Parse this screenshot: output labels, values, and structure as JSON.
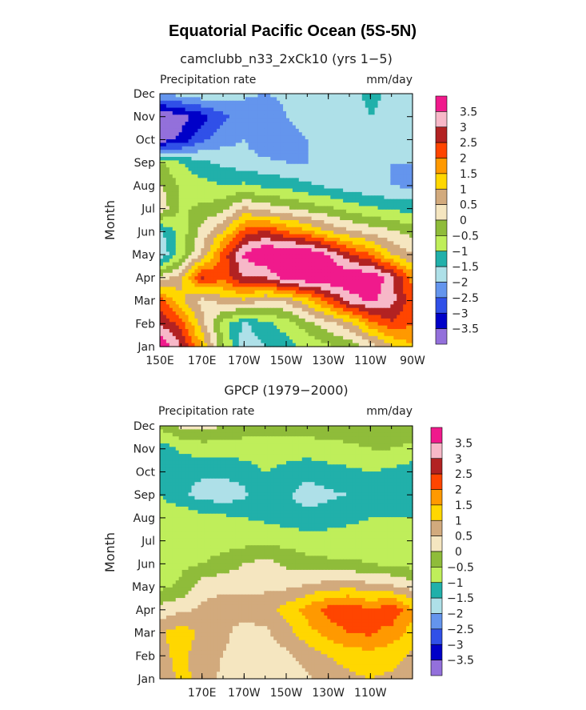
{
  "title": "Equatorial Pacific Ocean (5S-5N)",
  "colors": {
    "levels": [
      "3.5",
      "3",
      "2.5",
      "2",
      "1.5",
      "1",
      "0.5",
      "0",
      "−0.5",
      "−1",
      "−1.5",
      "−2",
      "−2.5",
      "−3",
      "−3.5"
    ],
    "palette": [
      "#f01a8c",
      "#f7b8c8",
      "#b22222",
      "#ff4500",
      "#ff9900",
      "#ffd700",
      "#d2aa7d",
      "#f5e6c0",
      "#8fbc3a",
      "#bfee5a",
      "#21b0aa",
      "#aee0e8",
      "#6495ed",
      "#3050e8",
      "#0000c8",
      "#9370db"
    ]
  },
  "chart_data": [
    {
      "type": "heatmap",
      "title": "camclubb_n33_2xCk10 (yrs 1−5)",
      "left_label": "Precipitation rate",
      "right_label": "mm/day",
      "ylabel": "Month",
      "xlabel": "",
      "y_ticks": [
        "Jan",
        "Feb",
        "Mar",
        "Apr",
        "May",
        "Jun",
        "Jul",
        "Aug",
        "Sep",
        "Oct",
        "Nov",
        "Dec"
      ],
      "x_ticks": [
        "150E",
        "170E",
        "170W",
        "150W",
        "130W",
        "110W",
        "90W"
      ],
      "x_range_lon": [
        150,
        270
      ],
      "colorbar": {
        "levels": [
          "3.5",
          "3",
          "2.5",
          "2",
          "1.5",
          "1",
          "0.5",
          "0",
          "−0.5",
          "−1",
          "−1.5",
          "−2",
          "−2.5",
          "−3",
          "−3.5"
        ]
      },
      "lon": [
        150,
        160,
        170,
        180,
        190,
        200,
        210,
        220,
        230,
        240,
        250,
        260,
        270
      ],
      "months": [
        "Jan",
        "Feb",
        "Mar",
        "Apr",
        "May",
        "Jun",
        "Jul",
        "Aug",
        "Sep",
        "Oct",
        "Nov",
        "Dec"
      ],
      "values": [
        [
          4,
          3,
          1.5,
          -0.5,
          -1.8,
          -1.5,
          -1.2,
          -0.9,
          -0.6,
          -0.3,
          0.2,
          0.9,
          1.5
        ],
        [
          3,
          2.3,
          0.7,
          -0.7,
          -1.6,
          -1.1,
          -0.8,
          -0.2,
          0.3,
          0.8,
          1.8,
          2.4,
          2.0
        ],
        [
          2.2,
          1.1,
          0.3,
          0.7,
          0.9,
          0.4,
          0.6,
          1.3,
          2.2,
          3.2,
          3.6,
          3.2,
          2.2
        ],
        [
          0.2,
          0.8,
          2.6,
          2.2,
          3.0,
          3.0,
          3.8,
          4.0,
          4.1,
          4.0,
          4.0,
          3.2,
          1.8
        ],
        [
          -2,
          -0.7,
          0.6,
          2.2,
          3.6,
          4.1,
          4.2,
          4.2,
          3.5,
          2.6,
          2.0,
          1.0,
          0.5
        ],
        [
          -1.6,
          -0.8,
          0.2,
          1.0,
          2.2,
          2.6,
          2.0,
          1.6,
          1.0,
          0.6,
          0.3,
          0.1,
          -0.2
        ],
        [
          0.4,
          -0.6,
          -0.4,
          -0.2,
          0.6,
          0.3,
          0.1,
          -0.2,
          -0.4,
          -0.7,
          -0.9,
          -1.1,
          -1.2
        ],
        [
          0.1,
          -0.6,
          -0.8,
          -1.0,
          -0.9,
          -1.1,
          -1.2,
          -1.4,
          -1.6,
          -1.8,
          -1.9,
          -2.0,
          -2.1
        ],
        [
          -0.4,
          -1.0,
          -1.4,
          -1.6,
          -1.8,
          -1.9,
          -2.0,
          -2.0,
          -2.0,
          -2.0,
          -2.0,
          -2.0,
          -2.0
        ],
        [
          -3.8,
          -3.4,
          -2.6,
          -2.2,
          -2.0,
          -2.4,
          -2.2,
          -2.0,
          -2.0,
          -2.0,
          -2.0,
          -2.0,
          -2.0
        ],
        [
          -4,
          -3.7,
          -3.2,
          -2.6,
          -2.3,
          -2.4,
          -2.0,
          -1.8,
          -1.6,
          -1.7,
          -1.5,
          -1.6,
          -1.8
        ],
        [
          -2,
          -1.8,
          -1.6,
          -1.8,
          -1.9,
          -2.0,
          -1.9,
          -1.8,
          -1.7,
          -1.6,
          -1.4,
          -1.6,
          -1.8
        ]
      ]
    },
    {
      "type": "heatmap",
      "title": "GPCP (1979−2000)",
      "left_label": "Precipitation rate",
      "right_label": "mm/day",
      "ylabel": "Month",
      "xlabel": "",
      "y_ticks": [
        "Jan",
        "Feb",
        "Mar",
        "Apr",
        "May",
        "Jun",
        "Jul",
        "Aug",
        "Sep",
        "Oct",
        "Nov",
        "Dec"
      ],
      "x_ticks": [
        "170E",
        "170W",
        "150W",
        "130W",
        "110W"
      ],
      "x_range_lon": [
        150,
        270
      ],
      "colorbar": {
        "levels": [
          "3.5",
          "3",
          "2.5",
          "2",
          "1.5",
          "1",
          "0.5",
          "0",
          "−0.5",
          "−1",
          "−1.5",
          "−2",
          "−2.5",
          "−3",
          "−3.5"
        ]
      },
      "lon": [
        150,
        160,
        170,
        180,
        190,
        200,
        210,
        220,
        230,
        240,
        250,
        260,
        270
      ],
      "months": [
        "Jan",
        "Feb",
        "Mar",
        "Apr",
        "May",
        "Jun",
        "Jul",
        "Aug",
        "Sep",
        "Oct",
        "Nov",
        "Dec"
      ],
      "values": [
        [
          0.5,
          1.2,
          0.8,
          0.4,
          0.2,
          0.1,
          0.2,
          0.4,
          0.7,
          0.9,
          1.0,
          0.9,
          0.7
        ],
        [
          0.8,
          1.2,
          0.6,
          0.5,
          0.3,
          0.2,
          0.4,
          0.7,
          1.0,
          1.2,
          1.3,
          1.2,
          0.9
        ],
        [
          0.9,
          1.3,
          0.9,
          0.6,
          0.3,
          0.4,
          0.8,
          1.3,
          1.7,
          2.0,
          2.1,
          1.8,
          1.3
        ],
        [
          0.2,
          0.4,
          0.6,
          0.7,
          0.7,
          0.8,
          1.2,
          1.7,
          2.2,
          2.4,
          2.0,
          2.4,
          1.6
        ],
        [
          -0.6,
          -0.4,
          0.3,
          0.4,
          0.4,
          0.4,
          0.4,
          0.6,
          0.8,
          0.9,
          0.7,
          0.6,
          0.3
        ],
        [
          -0.8,
          -0.6,
          -0.5,
          -0.3,
          0.0,
          0.2,
          -0.1,
          -0.3,
          -0.4,
          -0.4,
          -0.5,
          -0.6,
          -0.7
        ],
        [
          -0.8,
          -0.9,
          -0.8,
          -0.7,
          -0.7,
          -0.6,
          -0.7,
          -0.8,
          -0.8,
          -0.8,
          -0.8,
          -0.9,
          -0.9
        ],
        [
          -0.7,
          -0.6,
          -0.8,
          -0.9,
          -1.0,
          -1.1,
          -1.2,
          -1.3,
          -1.2,
          -1.1,
          -1.0,
          -1.0,
          -1.0
        ],
        [
          -1.0,
          -1.4,
          -1.7,
          -1.8,
          -1.6,
          -1.1,
          -1.4,
          -1.8,
          -1.6,
          -1.5,
          -1.3,
          -1.2,
          -1.4
        ],
        [
          -1.1,
          -1.3,
          -1.4,
          -1.4,
          -1.3,
          -1.0,
          -1.2,
          -1.3,
          -1.2,
          -1.1,
          -1.0,
          -1.1,
          -1.3
        ],
        [
          -1.3,
          -0.9,
          -0.8,
          -0.8,
          -0.7,
          -0.6,
          -0.7,
          -0.8,
          -0.7,
          -0.6,
          -0.5,
          -0.5,
          -0.6
        ],
        [
          -0.4,
          0.1,
          0.2,
          0.0,
          -0.3,
          -0.4,
          -0.3,
          -0.2,
          -0.2,
          -0.2,
          -0.2,
          -0.2,
          -0.3
        ]
      ]
    }
  ]
}
